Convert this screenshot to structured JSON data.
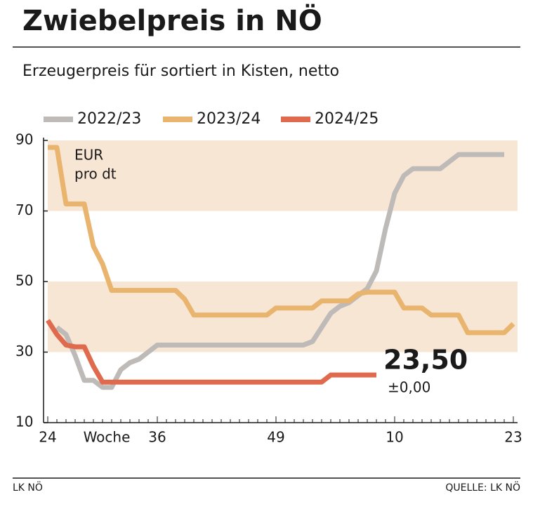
{
  "chart_data": {
    "type": "line",
    "title": "Zwiebelpreis in NÖ",
    "subtitle": "Erzeugerpreis für sortiert in Kisten, netto",
    "y_unit": [
      "EUR",
      "pro dt"
    ],
    "x_label": "Woche",
    "categories": [
      "24",
      null,
      null,
      null,
      null,
      null,
      null,
      null,
      null,
      null,
      null,
      null,
      "36",
      null,
      null,
      null,
      null,
      null,
      null,
      null,
      null,
      null,
      null,
      null,
      null,
      "49",
      null,
      null,
      null,
      null,
      null,
      null,
      null,
      null,
      null,
      null,
      null,
      null,
      "10",
      null,
      null,
      null,
      null,
      null,
      null,
      null,
      null,
      null,
      null,
      null,
      null,
      "23"
    ],
    "series": [
      {
        "name": "2022/23",
        "color": "#bdbab7",
        "values": [
          null,
          37,
          35,
          29,
          22,
          22,
          20,
          20,
          25,
          27,
          28,
          30,
          32,
          32,
          32,
          32,
          32,
          32,
          32,
          32,
          32,
          32,
          32,
          32,
          32,
          32,
          32,
          32,
          32,
          33,
          37,
          41,
          43,
          44,
          46,
          48,
          53,
          65,
          75,
          80,
          82,
          82,
          82,
          82,
          84,
          86,
          86,
          86,
          86,
          86,
          86,
          null
        ]
      },
      {
        "name": "2023/24",
        "color": "#e8b46e",
        "values": [
          88,
          88,
          72,
          72,
          72,
          60,
          55,
          47.5,
          47.5,
          47.5,
          47.5,
          47.5,
          47.5,
          47.5,
          47.5,
          45,
          40.5,
          40.5,
          40.5,
          40.5,
          40.5,
          40.5,
          40.5,
          40.5,
          40.5,
          42.5,
          42.5,
          42.5,
          42.5,
          42.5,
          44.5,
          44.5,
          44.5,
          44.5,
          46.5,
          47,
          47,
          47,
          47,
          42.5,
          42.5,
          42.5,
          40.5,
          40.5,
          40.5,
          40.5,
          35.5,
          35.5,
          35.5,
          35.5,
          35.5,
          38
        ]
      },
      {
        "name": "2024/25",
        "color": "#e06a4e",
        "values": [
          39,
          35,
          32,
          31.5,
          31.5,
          26,
          21.5,
          21.5,
          21.5,
          21.5,
          21.5,
          21.5,
          21.5,
          21.5,
          21.5,
          21.5,
          21.5,
          21.5,
          21.5,
          21.5,
          21.5,
          21.5,
          21.5,
          21.5,
          21.5,
          21.5,
          21.5,
          21.5,
          21.5,
          21.5,
          21.5,
          23.5,
          23.5,
          23.5,
          23.5,
          23.5,
          23.5,
          null,
          null,
          null,
          null,
          null,
          null,
          null,
          null,
          null,
          null,
          null,
          null,
          null,
          null,
          null
        ]
      }
    ],
    "annotations": [
      {
        "text": "23,50"
      },
      {
        "text": "±0,00"
      }
    ],
    "shaded_bands": [
      [
        30,
        50
      ],
      [
        70,
        90
      ]
    ],
    "band_color": "#f8e6d5",
    "ylim": [
      10,
      90
    ],
    "yticks": [
      10,
      30,
      50,
      70,
      90
    ],
    "legend": "top",
    "footer_left": "LK NÖ",
    "footer_right": "QUELLE: LK NÖ"
  }
}
